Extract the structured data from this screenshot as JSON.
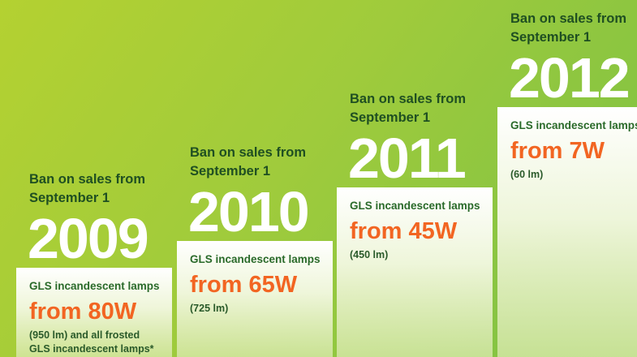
{
  "steps": [
    {
      "heading": [
        "Ban on sales from",
        "September 1"
      ],
      "year": "2009",
      "lamp": "GLS incandescent lamps",
      "limit": "from 80W",
      "note": [
        "(950 lm) and all frosted",
        "GLS incandescent lamps*"
      ]
    },
    {
      "heading": [
        "Ban on sales from",
        "September 1"
      ],
      "year": "2010",
      "lamp": "GLS incandescent lamps",
      "limit": "from 65W",
      "note": [
        "(725 lm)"
      ]
    },
    {
      "heading": [
        "Ban on sales from",
        "September 1"
      ],
      "year": "2011",
      "lamp": "GLS incandescent lamps",
      "limit": "from 45W",
      "note": [
        "(450 lm)"
      ]
    },
    {
      "heading": [
        "Ban on sales from",
        "September 1"
      ],
      "year": "2012",
      "lamp": "GLS incandescent lamps",
      "limit": "from 7W",
      "note": [
        "(60 lm)"
      ]
    }
  ]
}
